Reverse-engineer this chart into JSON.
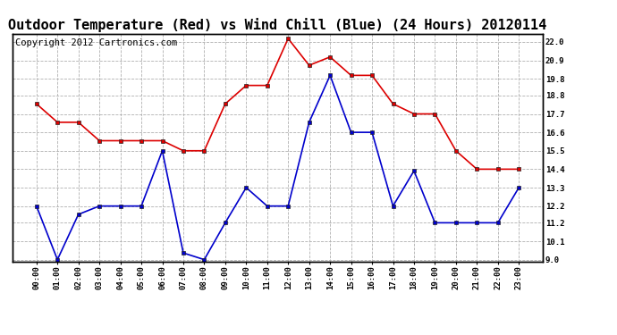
{
  "title": "Outdoor Temperature (Red) vs Wind Chill (Blue) (24 Hours) 20120114",
  "copyright": "Copyright 2012 Cartronics.com",
  "x_labels": [
    "00:00",
    "01:00",
    "02:00",
    "03:00",
    "04:00",
    "05:00",
    "06:00",
    "07:00",
    "08:00",
    "09:00",
    "10:00",
    "11:00",
    "12:00",
    "13:00",
    "14:00",
    "15:00",
    "16:00",
    "17:00",
    "18:00",
    "19:00",
    "20:00",
    "21:00",
    "22:00",
    "23:00"
  ],
  "red_data": [
    18.3,
    17.2,
    17.2,
    16.1,
    16.1,
    16.1,
    16.1,
    15.5,
    15.5,
    18.3,
    19.4,
    19.4,
    22.2,
    20.6,
    21.1,
    20.0,
    20.0,
    18.3,
    17.7,
    17.7,
    15.5,
    14.4,
    14.4,
    14.4
  ],
  "blue_data": [
    12.2,
    9.0,
    11.7,
    12.2,
    12.2,
    12.2,
    15.5,
    9.4,
    9.0,
    11.2,
    13.3,
    12.2,
    12.2,
    17.2,
    20.0,
    16.6,
    16.6,
    12.2,
    14.3,
    11.2,
    11.2,
    11.2,
    11.2,
    13.3
  ],
  "ylim": [
    8.9,
    22.5
  ],
  "yticks": [
    9.0,
    10.1,
    11.2,
    12.2,
    13.3,
    14.4,
    15.5,
    16.6,
    17.7,
    18.8,
    19.8,
    20.9,
    22.0
  ],
  "background_color": "#ffffff",
  "plot_bg_color": "#ffffff",
  "grid_color": "#b0b0b0",
  "red_color": "#dd0000",
  "blue_color": "#0000cc",
  "title_fontsize": 11,
  "copyright_fontsize": 7.5
}
